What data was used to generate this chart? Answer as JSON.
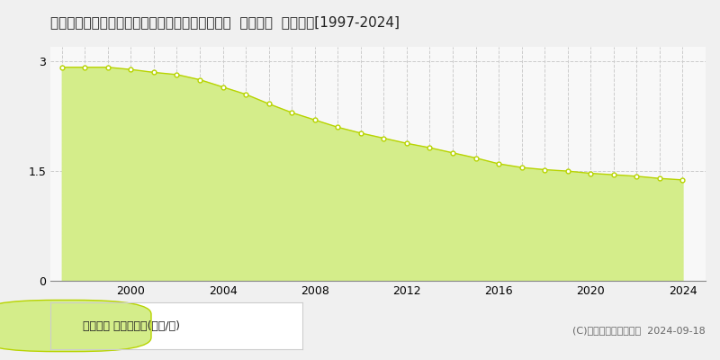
{
  "title": "青森県下北郡風間浦村大字蛇浦字新釜谷２６番６  基準地価  地価推移[1997-2024]",
  "years": [
    1997,
    1998,
    1999,
    2000,
    2001,
    2002,
    2003,
    2004,
    2005,
    2006,
    2007,
    2008,
    2009,
    2010,
    2011,
    2012,
    2013,
    2014,
    2015,
    2016,
    2017,
    2018,
    2019,
    2020,
    2021,
    2022,
    2023,
    2024
  ],
  "values": [
    2.92,
    2.92,
    2.92,
    2.89,
    2.85,
    2.82,
    2.75,
    2.65,
    2.55,
    2.42,
    2.3,
    2.2,
    2.1,
    2.02,
    1.95,
    1.88,
    1.82,
    1.75,
    1.68,
    1.6,
    1.55,
    1.52,
    1.5,
    1.47,
    1.45,
    1.43,
    1.4,
    1.38
  ],
  "fill_color": "#d4ed8a",
  "line_color": "#b8d400",
  "marker_color": "#ffffff",
  "marker_edge_color": "#b8d400",
  "grid_color": "#cccccc",
  "bg_color": "#f0f0f0",
  "plot_bg_color": "#f8f8f8",
  "yticks": [
    0,
    1.5,
    3
  ],
  "ylim": [
    0,
    3.2
  ],
  "xlim": [
    1996.5,
    2025.0
  ],
  "xticks": [
    2000,
    2004,
    2008,
    2012,
    2016,
    2020,
    2024
  ],
  "all_years_grid": [
    1997,
    1998,
    1999,
    2000,
    2001,
    2002,
    2003,
    2004,
    2005,
    2006,
    2007,
    2008,
    2009,
    2010,
    2011,
    2012,
    2013,
    2014,
    2015,
    2016,
    2017,
    2018,
    2019,
    2020,
    2021,
    2022,
    2023,
    2024
  ],
  "legend_label": "基準地価 平均坪単価(万円/坪)",
  "copyright_text": "(C)土地価格ドットコム  2024-09-18",
  "title_fontsize": 11,
  "axis_fontsize": 9,
  "legend_fontsize": 9,
  "copyright_fontsize": 8
}
